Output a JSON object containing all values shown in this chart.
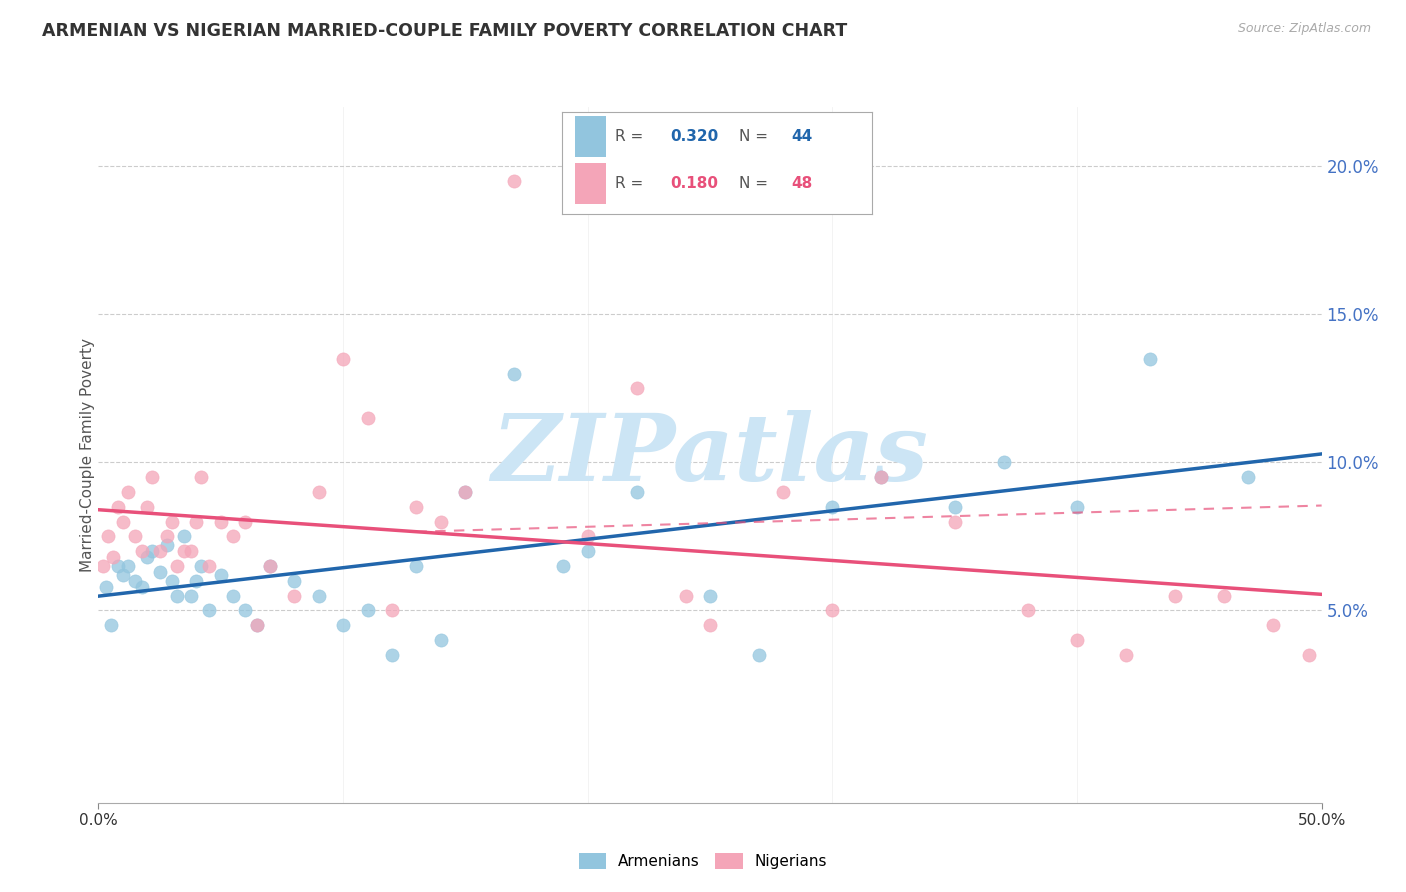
{
  "title": "ARMENIAN VS NIGERIAN MARRIED-COUPLE FAMILY POVERTY CORRELATION CHART",
  "source": "Source: ZipAtlas.com",
  "ylabel": "Married-Couple Family Poverty",
  "xlim": [
    0,
    50
  ],
  "ylim": [
    -1.5,
    22
  ],
  "armenian_R": 0.32,
  "armenian_N": 44,
  "nigerian_R": 0.18,
  "nigerian_N": 48,
  "armenian_color": "#92c5de",
  "nigerian_color": "#f4a5b8",
  "armenian_line_color": "#2166ac",
  "nigerian_line_color": "#e8507a",
  "watermark": "ZIPatlas",
  "watermark_color": "#cce5f5",
  "armenians_x": [
    0.3,
    0.5,
    0.8,
    1.0,
    1.2,
    1.5,
    1.8,
    2.0,
    2.2,
    2.5,
    2.8,
    3.0,
    3.2,
    3.5,
    3.8,
    4.0,
    4.2,
    4.5,
    5.0,
    5.5,
    6.0,
    6.5,
    7.0,
    8.0,
    9.0,
    10.0,
    11.0,
    12.0,
    13.0,
    14.0,
    15.0,
    17.0,
    19.0,
    20.0,
    22.0,
    25.0,
    27.0,
    30.0,
    32.0,
    35.0,
    37.0,
    40.0,
    43.0,
    47.0
  ],
  "armenians_y": [
    5.8,
    4.5,
    6.5,
    6.2,
    6.5,
    6.0,
    5.8,
    6.8,
    7.0,
    6.3,
    7.2,
    6.0,
    5.5,
    7.5,
    5.5,
    6.0,
    6.5,
    5.0,
    6.2,
    5.5,
    5.0,
    4.5,
    6.5,
    6.0,
    5.5,
    4.5,
    5.0,
    3.5,
    6.5,
    4.0,
    9.0,
    13.0,
    6.5,
    7.0,
    9.0,
    5.5,
    3.5,
    8.5,
    9.5,
    8.5,
    10.0,
    8.5,
    13.5,
    9.5
  ],
  "nigerians_x": [
    0.2,
    0.4,
    0.6,
    0.8,
    1.0,
    1.2,
    1.5,
    1.8,
    2.0,
    2.2,
    2.5,
    2.8,
    3.0,
    3.2,
    3.5,
    3.8,
    4.0,
    4.2,
    4.5,
    5.0,
    5.5,
    6.0,
    6.5,
    7.0,
    8.0,
    9.0,
    10.0,
    11.0,
    12.0,
    13.0,
    14.0,
    15.0,
    17.0,
    20.0,
    22.0,
    24.0,
    25.0,
    28.0,
    30.0,
    32.0,
    35.0,
    38.0,
    40.0,
    42.0,
    44.0,
    46.0,
    48.0,
    49.5
  ],
  "nigerians_y": [
    6.5,
    7.5,
    6.8,
    8.5,
    8.0,
    9.0,
    7.5,
    7.0,
    8.5,
    9.5,
    7.0,
    7.5,
    8.0,
    6.5,
    7.0,
    7.0,
    8.0,
    9.5,
    6.5,
    8.0,
    7.5,
    8.0,
    4.5,
    6.5,
    5.5,
    9.0,
    13.5,
    11.5,
    5.0,
    8.5,
    8.0,
    9.0,
    19.5,
    7.5,
    12.5,
    5.5,
    4.5,
    9.0,
    5.0,
    9.5,
    8.0,
    5.0,
    4.0,
    3.5,
    5.5,
    5.5,
    4.5,
    3.5
  ],
  "y_ticks_right": [
    5,
    10,
    15,
    20
  ],
  "x_ticks_show": [
    0,
    50
  ]
}
